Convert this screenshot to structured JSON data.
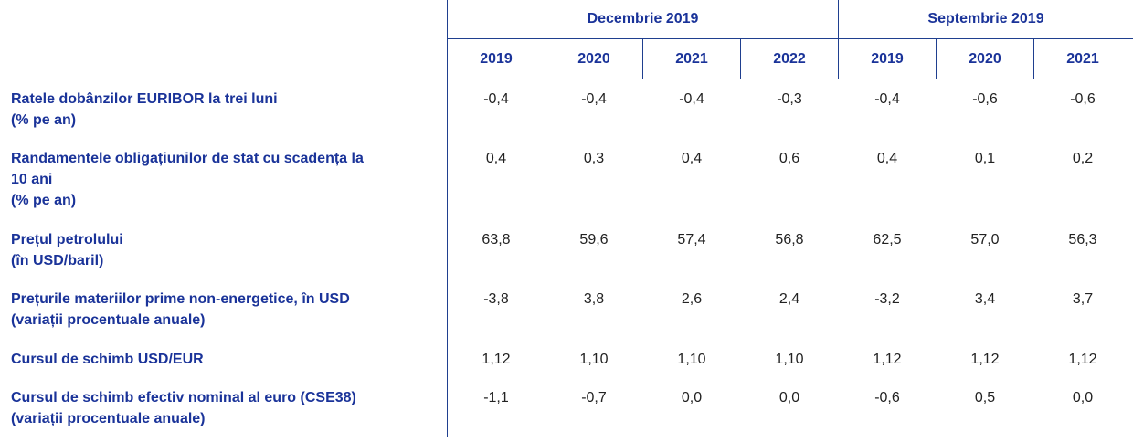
{
  "header": {
    "group1": "Decembrie 2019",
    "group2": "Septembrie 2019",
    "years": [
      "2019",
      "2020",
      "2021",
      "2022",
      "2019",
      "2020",
      "2021"
    ]
  },
  "rows": [
    {
      "label_lines": [
        "Ratele dobânzilor EURIBOR la trei luni",
        "(% pe an)"
      ],
      "values": [
        "-0,4",
        "-0,4",
        "-0,4",
        "-0,3",
        "-0,4",
        "-0,6",
        "-0,6"
      ]
    },
    {
      "label_lines": [
        "Randamentele obligațiunilor de stat cu scadența la",
        "10 ani",
        "(% pe an)"
      ],
      "values": [
        "0,4",
        "0,3",
        "0,4",
        "0,6",
        "0,4",
        "0,1",
        "0,2"
      ]
    },
    {
      "label_lines": [
        "Prețul petrolului",
        "(în USD/baril)"
      ],
      "values": [
        "63,8",
        "59,6",
        "57,4",
        "56,8",
        "62,5",
        "57,0",
        "56,3"
      ]
    },
    {
      "label_lines": [
        "Prețurile materiilor prime non-energetice, în USD",
        "(variații procentuale anuale)"
      ],
      "values": [
        "-3,8",
        "3,8",
        "2,6",
        "2,4",
        "-3,2",
        "3,4",
        "3,7"
      ]
    },
    {
      "label_lines": [
        "Cursul de schimb USD/EUR"
      ],
      "values": [
        "1,12",
        "1,10",
        "1,10",
        "1,10",
        "1,12",
        "1,12",
        "1,12"
      ]
    },
    {
      "label_lines": [
        "Cursul de schimb efectiv nominal al euro (CSE38)",
        "(variații procentuale anuale)"
      ],
      "values": [
        "-1,1",
        "-0,7",
        "0,0",
        "0,0",
        "-0,6",
        "0,5",
        "0,0"
      ]
    }
  ]
}
